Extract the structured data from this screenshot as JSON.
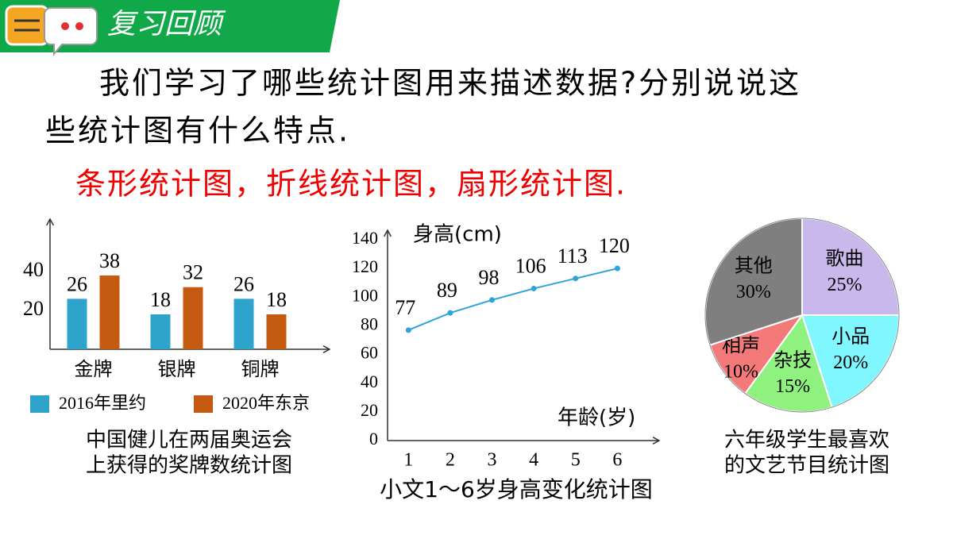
{
  "header": {
    "title": "复习回顾"
  },
  "question": [
    "我们学习了哪些统计图用来描述数据?分别说说这",
    "些统计图有什么特点."
  ],
  "answer": "条形统计图，折线统计图，扇形统计图.",
  "chart_data": [
    {
      "type": "bar",
      "title": [
        "中国健儿在两届奥运会",
        "上获得的奖牌数统计图"
      ],
      "categories": [
        "金牌",
        "银牌",
        "铜牌"
      ],
      "series": [
        {
          "name": "2016年里约",
          "color": "#2ea3cc",
          "values": [
            26,
            18,
            26
          ]
        },
        {
          "name": "2020年东京",
          "color": "#c55a11",
          "values": [
            38,
            32,
            18
          ]
        }
      ],
      "ylim": [
        0,
        65
      ],
      "yticks": [
        20,
        40
      ]
    },
    {
      "type": "line",
      "title": "小文1～6岁身高变化统计图",
      "xlabel": "年龄(岁)",
      "ylabel": "身高(cm)",
      "x": [
        1,
        2,
        3,
        4,
        5,
        6
      ],
      "values": [
        77,
        89,
        98,
        106,
        113,
        120
      ],
      "color": "#2ea3dc",
      "xlim": [
        0.5,
        7
      ],
      "xticks": [
        1,
        2,
        3,
        4,
        5,
        6
      ],
      "ylim": [
        0,
        140
      ],
      "yticks": [
        0,
        20,
        40,
        60,
        80,
        100,
        120,
        140
      ]
    },
    {
      "type": "pie",
      "title": [
        "六年级学生最喜欢",
        "的文艺节目统计图"
      ],
      "categories": [
        "歌曲",
        "小品",
        "杂技",
        "相声",
        "其他"
      ],
      "values": [
        25,
        20,
        15,
        10,
        30
      ],
      "value_labels": [
        "25%",
        "20%",
        "15%",
        "10%",
        "30%"
      ],
      "colors": [
        "#c8b8ec",
        "#80f6ff",
        "#8ff27f",
        "#f47a7a",
        "#7f7f7f"
      ]
    }
  ]
}
